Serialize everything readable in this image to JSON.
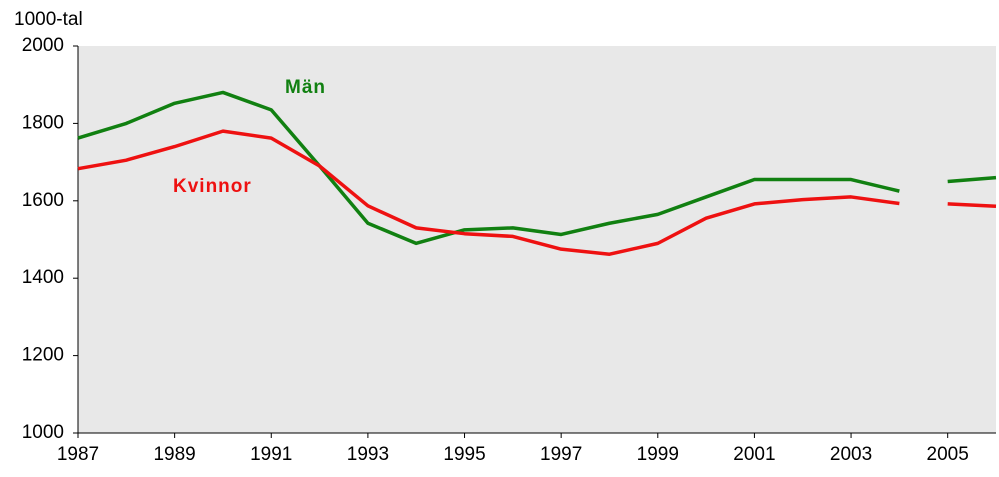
{
  "chart_data": {
    "type": "line",
    "y_label": "1000-tal",
    "x": [
      1987,
      1988,
      1989,
      1990,
      1991,
      1992,
      1993,
      1994,
      1995,
      1996,
      1997,
      1998,
      1999,
      2000,
      2001,
      2002,
      2003,
      2004,
      null,
      2005,
      2006
    ],
    "series": [
      {
        "name": "Män",
        "color": "#118011",
        "values": [
          1762,
          1800,
          1852,
          1880,
          1835,
          1690,
          1542,
          1490,
          1525,
          1530,
          1513,
          1542,
          1565,
          1610,
          1655,
          1655,
          1655,
          1625,
          null,
          1650,
          1660
        ]
      },
      {
        "name": "Kvinnor",
        "color": "#ee1111",
        "values": [
          1683,
          1705,
          1740,
          1780,
          1762,
          1690,
          1587,
          1530,
          1515,
          1508,
          1475,
          1462,
          1490,
          1555,
          1592,
          1603,
          1610,
          1593,
          null,
          1592,
          1586
        ]
      }
    ],
    "xlim": [
      1987,
      2006
    ],
    "xticks": [
      1987,
      1989,
      1991,
      1993,
      1995,
      1997,
      1999,
      2001,
      2003,
      2005
    ],
    "ylim": [
      1000,
      2000
    ],
    "yticks": [
      1000,
      1200,
      1400,
      1600,
      1800,
      2000
    ],
    "grid": false
  }
}
